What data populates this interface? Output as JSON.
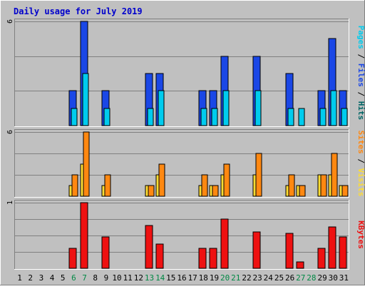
{
  "chart_data": {
    "type": "bar",
    "title": "Daily usage for July 2019",
    "days": [
      "1",
      "2",
      "3",
      "4",
      "5",
      "6",
      "7",
      "8",
      "9",
      "10",
      "11",
      "12",
      "13",
      "14",
      "15",
      "16",
      "17",
      "18",
      "19",
      "20",
      "21",
      "22",
      "23",
      "24",
      "25",
      "26",
      "27",
      "28",
      "29",
      "30",
      "31"
    ],
    "weekend_days": [
      "6",
      "7",
      "13",
      "14",
      "20",
      "21",
      "27",
      "28"
    ],
    "top_panel": {
      "ymax_label": "6",
      "ylim": [
        0,
        6
      ],
      "series": [
        {
          "name": "Hits",
          "color": "#006666",
          "values": [
            0,
            0,
            0,
            0,
            0,
            2,
            6,
            0,
            2,
            0,
            0,
            0,
            3,
            3,
            0,
            0,
            0,
            2,
            2,
            4,
            0,
            0,
            4,
            0,
            0,
            3,
            0,
            0,
            2,
            5,
            2
          ]
        },
        {
          "name": "Files",
          "color": "#1a47e6",
          "values": [
            0,
            0,
            0,
            0,
            0,
            2,
            6,
            0,
            2,
            0,
            0,
            0,
            3,
            3,
            0,
            0,
            0,
            2,
            2,
            4,
            0,
            0,
            4,
            0,
            0,
            3,
            0,
            0,
            2,
            5,
            2
          ]
        },
        {
          "name": "Pages",
          "color": "#00ccee",
          "values": [
            0,
            0,
            0,
            0,
            0,
            1,
            3,
            0,
            1,
            0,
            0,
            0,
            1,
            2,
            0,
            0,
            0,
            1,
            1,
            2,
            0,
            0,
            2,
            0,
            0,
            1,
            1,
            0,
            1,
            2,
            1
          ]
        }
      ],
      "label_parts": [
        {
          "text": "Pages",
          "color": "#00ccee"
        },
        {
          "text": " / ",
          "color": "#000000"
        },
        {
          "text": "Files",
          "color": "#1a47e6"
        },
        {
          "text": " / ",
          "color": "#000000"
        },
        {
          "text": "Hits",
          "color": "#006666"
        }
      ]
    },
    "middle_panel": {
      "ymax_label": "6",
      "ylim": [
        0,
        6
      ],
      "series": [
        {
          "name": "Visits",
          "color": "#ffdd33",
          "values": [
            0,
            0,
            0,
            0,
            0,
            1,
            3,
            0,
            1,
            0,
            0,
            0,
            1,
            2,
            0,
            0,
            0,
            1,
            1,
            2,
            0,
            0,
            2,
            0,
            0,
            1,
            1,
            0,
            2,
            2,
            1
          ]
        },
        {
          "name": "Sites",
          "color": "#ff8811",
          "values": [
            0,
            0,
            0,
            0,
            0,
            2,
            6,
            0,
            2,
            0,
            0,
            0,
            1,
            3,
            0,
            0,
            0,
            2,
            1,
            3,
            0,
            0,
            4,
            0,
            0,
            2,
            1,
            0,
            2,
            4,
            1
          ]
        }
      ],
      "label_parts": [
        {
          "text": "Sites",
          "color": "#ff8811"
        },
        {
          "text": " / ",
          "color": "#000000"
        },
        {
          "text": "Visits",
          "color": "#ffdd33"
        }
      ]
    },
    "bottom_panel": {
      "ymax_label": "1",
      "ylim": [
        0,
        1
      ],
      "series": [
        {
          "name": "KBytes",
          "color": "#ee1111",
          "values": [
            0,
            0,
            0,
            0,
            0,
            0.3,
            1.0,
            0,
            0.48,
            0,
            0,
            0,
            0.65,
            0.37,
            0,
            0,
            0,
            0.3,
            0.3,
            0.75,
            0,
            0,
            0.55,
            0,
            0,
            0.53,
            0.1,
            0,
            0.3,
            0.63,
            0.48
          ]
        }
      ],
      "label_parts": [
        {
          "text": "KBytes",
          "color": "#ee1111"
        }
      ]
    },
    "colors": {
      "title": "#0000cc",
      "panel_bg": "#c0c0c0",
      "border_light": "#ffffff",
      "border_dark": "#808080",
      "weekday_label": "#000000",
      "weekend_label": "#008844",
      "grid": "#808080"
    }
  }
}
